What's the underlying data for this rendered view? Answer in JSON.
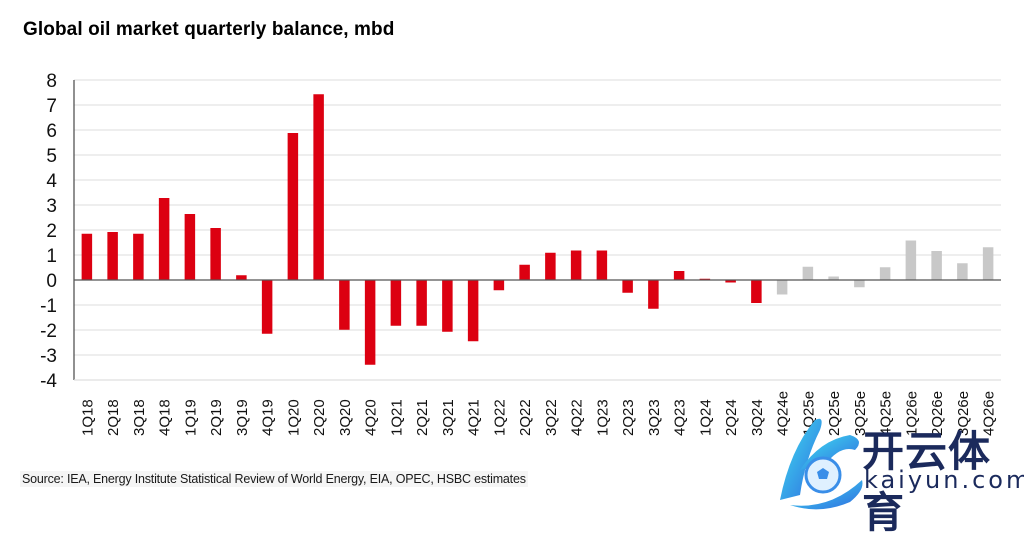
{
  "title": "Global oil market quarterly balance, mbd",
  "source": "Source: IEA, Energy Institute Statistical Review of World Energy, EIA, OPEC, HSBC estimates",
  "watermark": {
    "chinese": "开云体育",
    "latin": "kaiyun.com"
  },
  "colors": {
    "actual": "#dc0011",
    "estimate": "#c8c8c8",
    "grid": "#e3e3e3",
    "axis": "#555555"
  },
  "chart_data": {
    "type": "bar",
    "title": "Global oil market quarterly balance, mbd",
    "xlabel": "",
    "ylabel": "",
    "ylim": [
      -4,
      8
    ],
    "yticks": [
      8,
      7,
      6,
      5,
      4,
      3,
      2,
      1,
      0,
      -1,
      -2,
      -3,
      -4
    ],
    "grid": true,
    "legend": "none",
    "categories": [
      "1Q18",
      "2Q18",
      "3Q18",
      "4Q18",
      "1Q19",
      "2Q19",
      "3Q19",
      "4Q19",
      "1Q20",
      "2Q20",
      "3Q20",
      "4Q20",
      "1Q21",
      "2Q21",
      "3Q21",
      "4Q21",
      "1Q22",
      "2Q22",
      "3Q22",
      "4Q22",
      "1Q23",
      "2Q23",
      "3Q23",
      "4Q23",
      "1Q24",
      "2Q24",
      "3Q24",
      "4Q24e",
      "1Q25e",
      "2Q25e",
      "3Q25e",
      "4Q25e",
      "1Q26e",
      "2Q26e",
      "3Q26e",
      "4Q26e"
    ],
    "values": [
      1.85,
      1.92,
      1.85,
      3.28,
      2.64,
      2.08,
      0.19,
      -2.15,
      5.88,
      7.43,
      -1.99,
      -3.39,
      -1.83,
      -1.83,
      -2.07,
      -2.45,
      -0.41,
      0.61,
      1.09,
      1.18,
      1.18,
      -0.51,
      -1.15,
      0.36,
      0.05,
      -0.1,
      -0.92,
      -0.58,
      0.53,
      0.14,
      -0.29,
      0.51,
      1.58,
      1.16,
      0.67,
      1.31
    ],
    "estimate": [
      false,
      false,
      false,
      false,
      false,
      false,
      false,
      false,
      false,
      false,
      false,
      false,
      false,
      false,
      false,
      false,
      false,
      false,
      false,
      false,
      false,
      false,
      false,
      false,
      false,
      false,
      false,
      true,
      true,
      true,
      true,
      true,
      true,
      true,
      true,
      true
    ]
  }
}
